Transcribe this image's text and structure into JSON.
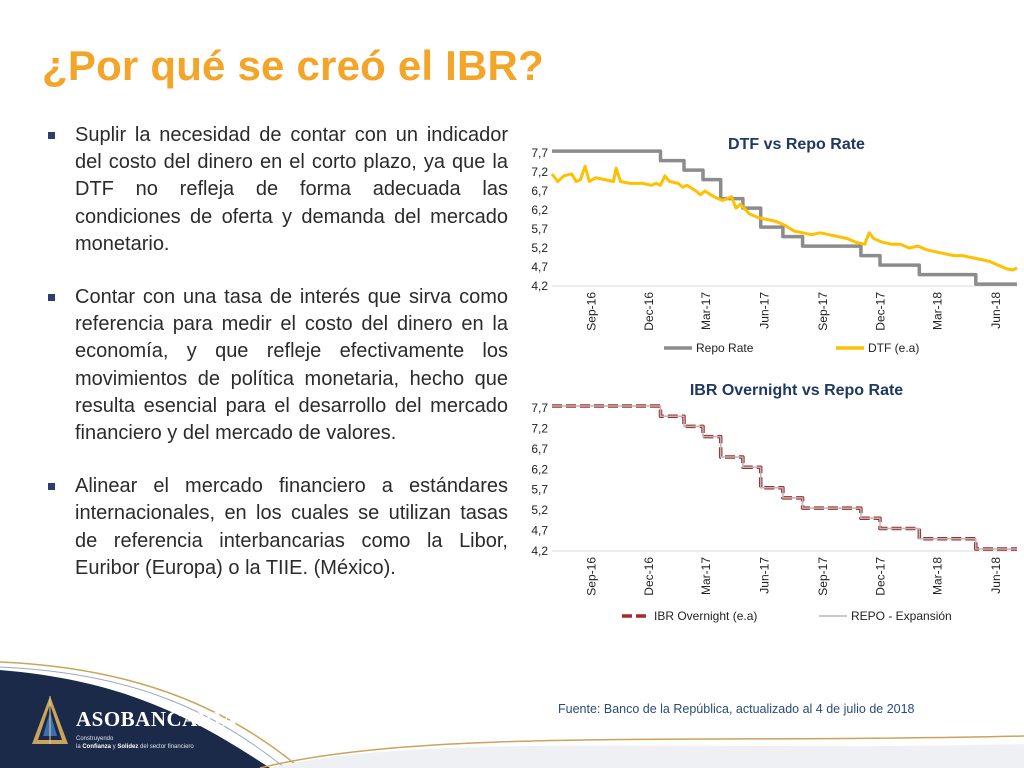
{
  "slide": {
    "title": "¿Por qué se creó el IBR?",
    "bullets": [
      "Suplir la necesidad de contar con un indicador del costo del dinero en el corto plazo, ya que la DTF no refleja de forma adecuada las condiciones de oferta y demanda del mercado monetario.",
      "Contar con una tasa de interés que sirva como referencia para medir el costo del dinero en la economía, y que refleje efectivamente los movimientos de política monetaria, hecho que resulta esencial para el desarrollo del mercado financiero y del mercado de valores.",
      "Alinear el mercado financiero a estándares internacionales, en los cuales se utilizan tasas de referencia interbancarias como la Libor, Euribor (Europa) o la TIIE. (México)."
    ],
    "source": "Fuente: Banco de la República, actualizado al 4 de julio de 2018"
  },
  "logo": {
    "name": "ASOBANCARIA",
    "tagline_1": "Construyendo",
    "tagline_2a": "la ",
    "tagline_2b": "Confianza",
    "tagline_2c": " y ",
    "tagline_2d": "Solidez",
    "tagline_2e": " del sector financiero"
  },
  "colors": {
    "title": "#f3a52a",
    "repo": "#8c8c8c",
    "dtf": "#ffc000",
    "ibr": "#a52a2a",
    "repo_expansion": "#b9b9b9",
    "footer_dark": "#1c2a4a",
    "footer_gold": "#c9a45a"
  },
  "chart_data": [
    {
      "type": "line",
      "title": "DTF vs Repo Rate",
      "x_range": [
        "2016-07-01",
        "2018-07-04"
      ],
      "x_ticks": [
        "Sep-16",
        "Dec-16",
        "Mar-17",
        "Jun-17",
        "Sep-17",
        "Dec-17",
        "Mar-18",
        "Jun-18"
      ],
      "y_ticks": [
        "7,7",
        "7,2",
        "6,7",
        "6,2",
        "5,7",
        "5,2",
        "4,7",
        "4,2"
      ],
      "ylim": [
        4.2,
        7.7
      ],
      "legend": "bottom",
      "series": [
        {
          "name": "Repo Rate",
          "style": "step",
          "color": "#8c8c8c",
          "points": [
            [
              "2016-07-01",
              7.75
            ],
            [
              "2016-12-19",
              7.5
            ],
            [
              "2017-01-24",
              7.5
            ],
            [
              "2017-01-25",
              7.25
            ],
            [
              "2017-02-24",
              7.0
            ],
            [
              "2017-03-24",
              6.5
            ],
            [
              "2017-04-28",
              6.25
            ],
            [
              "2017-05-26",
              5.75
            ],
            [
              "2017-06-30",
              5.5
            ],
            [
              "2017-07-31",
              5.25
            ],
            [
              "2017-10-31",
              5.0
            ],
            [
              "2017-11-30",
              4.75
            ],
            [
              "2018-01-31",
              4.5
            ],
            [
              "2018-04-30",
              4.25
            ],
            [
              "2018-07-04",
              4.25
            ]
          ]
        },
        {
          "name": "DTF (e.a)",
          "style": "line",
          "color": "#ffc000",
          "points": [
            [
              "2016-07-01",
              7.15
            ],
            [
              "2016-07-10",
              6.95
            ],
            [
              "2016-07-20",
              7.1
            ],
            [
              "2016-08-01",
              7.15
            ],
            [
              "2016-08-08",
              6.95
            ],
            [
              "2016-08-15",
              7.0
            ],
            [
              "2016-08-22",
              7.35
            ],
            [
              "2016-08-29",
              6.95
            ],
            [
              "2016-09-08",
              7.05
            ],
            [
              "2016-09-22",
              7.0
            ],
            [
              "2016-10-06",
              6.95
            ],
            [
              "2016-10-10",
              7.3
            ],
            [
              "2016-10-17",
              6.95
            ],
            [
              "2016-11-01",
              6.9
            ],
            [
              "2016-11-21",
              6.9
            ],
            [
              "2016-12-05",
              6.85
            ],
            [
              "2016-12-12",
              6.9
            ],
            [
              "2016-12-19",
              6.85
            ],
            [
              "2016-12-26",
              7.1
            ],
            [
              "2017-01-02",
              6.95
            ],
            [
              "2017-01-16",
              6.9
            ],
            [
              "2017-01-23",
              6.8
            ],
            [
              "2017-01-30",
              6.85
            ],
            [
              "2017-02-13",
              6.7
            ],
            [
              "2017-02-20",
              6.6
            ],
            [
              "2017-02-27",
              6.7
            ],
            [
              "2017-03-13",
              6.55
            ],
            [
              "2017-03-27",
              6.45
            ],
            [
              "2017-04-03",
              6.5
            ],
            [
              "2017-04-10",
              6.55
            ],
            [
              "2017-04-17",
              6.25
            ],
            [
              "2017-04-24",
              6.35
            ],
            [
              "2017-05-08",
              6.1
            ],
            [
              "2017-05-22",
              6.0
            ],
            [
              "2017-06-05",
              5.95
            ],
            [
              "2017-06-19",
              5.9
            ],
            [
              "2017-07-03",
              5.8
            ],
            [
              "2017-07-17",
              5.65
            ],
            [
              "2017-07-31",
              5.6
            ],
            [
              "2017-08-14",
              5.55
            ],
            [
              "2017-08-28",
              5.6
            ],
            [
              "2017-09-11",
              5.55
            ],
            [
              "2017-09-25",
              5.5
            ],
            [
              "2017-10-09",
              5.45
            ],
            [
              "2017-10-23",
              5.35
            ],
            [
              "2017-11-06",
              5.3
            ],
            [
              "2017-11-13",
              5.6
            ],
            [
              "2017-11-20",
              5.45
            ],
            [
              "2017-12-04",
              5.35
            ],
            [
              "2017-12-18",
              5.3
            ],
            [
              "2018-01-01",
              5.3
            ],
            [
              "2018-01-15",
              5.2
            ],
            [
              "2018-01-29",
              5.25
            ],
            [
              "2018-02-12",
              5.15
            ],
            [
              "2018-02-26",
              5.1
            ],
            [
              "2018-03-12",
              5.05
            ],
            [
              "2018-03-26",
              5.0
            ],
            [
              "2018-04-09",
              5.0
            ],
            [
              "2018-04-23",
              4.95
            ],
            [
              "2018-05-07",
              4.9
            ],
            [
              "2018-05-21",
              4.85
            ],
            [
              "2018-06-04",
              4.75
            ],
            [
              "2018-06-18",
              4.65
            ],
            [
              "2018-06-28",
              4.62
            ],
            [
              "2018-07-04",
              4.68
            ]
          ]
        }
      ]
    },
    {
      "type": "line",
      "title": "IBR Overnight vs Repo Rate",
      "x_range": [
        "2016-07-01",
        "2018-07-04"
      ],
      "x_ticks": [
        "Sep-16",
        "Dec-16",
        "Mar-17",
        "Jun-17",
        "Sep-17",
        "Dec-17",
        "Mar-18",
        "Jun-18"
      ],
      "y_ticks": [
        "7,7",
        "7,2",
        "6,7",
        "6,2",
        "5,7",
        "5,2",
        "4,7",
        "4,2"
      ],
      "ylim": [
        4.2,
        7.7
      ],
      "legend": "bottom",
      "series": [
        {
          "name": "IBR Overnight (e.a)",
          "style": "dashed-step",
          "color": "#a52a2a",
          "points": [
            [
              "2016-07-01",
              7.75
            ],
            [
              "2016-12-19",
              7.5
            ],
            [
              "2017-01-24",
              7.5
            ],
            [
              "2017-01-25",
              7.25
            ],
            [
              "2017-02-24",
              7.0
            ],
            [
              "2017-03-24",
              6.5
            ],
            [
              "2017-04-28",
              6.25
            ],
            [
              "2017-05-26",
              5.75
            ],
            [
              "2017-06-30",
              5.5
            ],
            [
              "2017-07-31",
              5.25
            ],
            [
              "2017-10-31",
              5.0
            ],
            [
              "2017-11-30",
              4.75
            ],
            [
              "2018-01-31",
              4.5
            ],
            [
              "2018-04-30",
              4.25
            ],
            [
              "2018-07-04",
              4.25
            ]
          ]
        },
        {
          "name": "REPO - Expansión",
          "style": "step",
          "color": "#b9b9b9",
          "points": [
            [
              "2016-07-01",
              7.75
            ],
            [
              "2016-12-19",
              7.5
            ],
            [
              "2017-01-24",
              7.5
            ],
            [
              "2017-01-25",
              7.25
            ],
            [
              "2017-02-24",
              7.0
            ],
            [
              "2017-03-24",
              6.5
            ],
            [
              "2017-04-28",
              6.25
            ],
            [
              "2017-05-26",
              5.75
            ],
            [
              "2017-06-30",
              5.5
            ],
            [
              "2017-07-31",
              5.25
            ],
            [
              "2017-10-31",
              5.0
            ],
            [
              "2017-11-30",
              4.75
            ],
            [
              "2018-01-31",
              4.5
            ],
            [
              "2018-04-30",
              4.25
            ],
            [
              "2018-07-04",
              4.25
            ]
          ]
        }
      ]
    }
  ]
}
